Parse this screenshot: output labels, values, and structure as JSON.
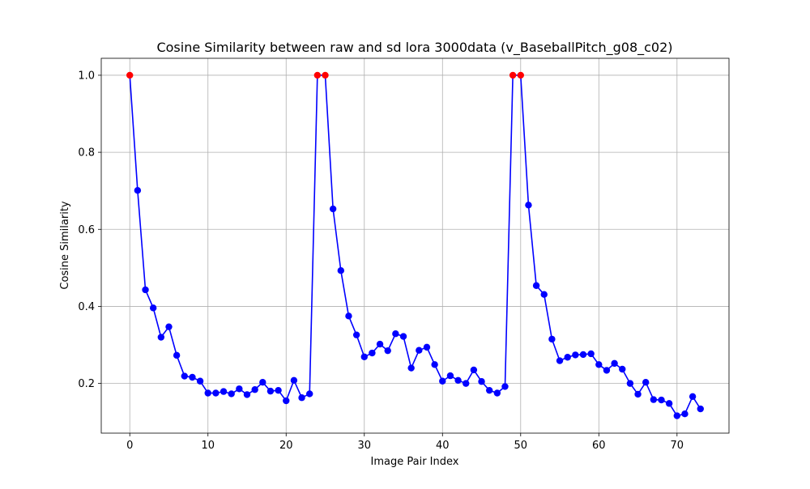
{
  "chart_data": {
    "type": "line",
    "title": "Cosine Similarity between raw and sd lora 3000data (v_BaseballPitch_g08_c02)",
    "xlabel": "Image Pair Index",
    "ylabel": "Cosine Similarity",
    "xlim": [
      -3.65,
      76.65
    ],
    "ylim": [
      0.071,
      1.044
    ],
    "xticks": [
      0,
      10,
      20,
      30,
      40,
      50,
      60,
      70
    ],
    "yticks": [
      0.2,
      0.4,
      0.6,
      0.8,
      1.0
    ],
    "ytick_labels": [
      "0.2",
      "0.4",
      "0.6",
      "0.8",
      "1.0"
    ],
    "grid": true,
    "line_color": "#0000ff",
    "highlight_color": "#ff0000",
    "series": [
      {
        "x": [
          0,
          1,
          2,
          3,
          4,
          5,
          6,
          7,
          8,
          9,
          10,
          11,
          12,
          13,
          14,
          15,
          16,
          17,
          18,
          19,
          20,
          21,
          22,
          23,
          24,
          25,
          26,
          27,
          28,
          29,
          30,
          31,
          32,
          33,
          34,
          35,
          36,
          37,
          38,
          39,
          40,
          41,
          42,
          43,
          44,
          45,
          46,
          47,
          48,
          49,
          50,
          51,
          52,
          53,
          54,
          55,
          56,
          57,
          58,
          59,
          60,
          61,
          62,
          63,
          64,
          65,
          66,
          67,
          68,
          69,
          70,
          71,
          72,
          73
        ],
        "values": [
          1.0,
          0.701,
          0.443,
          0.396,
          0.32,
          0.347,
          0.273,
          0.219,
          0.216,
          0.206,
          0.175,
          0.175,
          0.179,
          0.173,
          0.186,
          0.171,
          0.184,
          0.203,
          0.18,
          0.182,
          0.155,
          0.208,
          0.163,
          0.173,
          1.0,
          1.0,
          0.653,
          0.493,
          0.375,
          0.326,
          0.269,
          0.279,
          0.302,
          0.285,
          0.329,
          0.322,
          0.24,
          0.286,
          0.294,
          0.249,
          0.206,
          0.22,
          0.208,
          0.2,
          0.235,
          0.205,
          0.182,
          0.175,
          0.192,
          1.0,
          1.0,
          0.663,
          0.454,
          0.431,
          0.315,
          0.259,
          0.268,
          0.274,
          0.275,
          0.277,
          0.249,
          0.234,
          0.252,
          0.237,
          0.2,
          0.172,
          0.203,
          0.158,
          0.157,
          0.148,
          0.116,
          0.121,
          0.166,
          0.134
        ],
        "highlighted_x": [
          0,
          24,
          25,
          49,
          50
        ]
      }
    ]
  }
}
